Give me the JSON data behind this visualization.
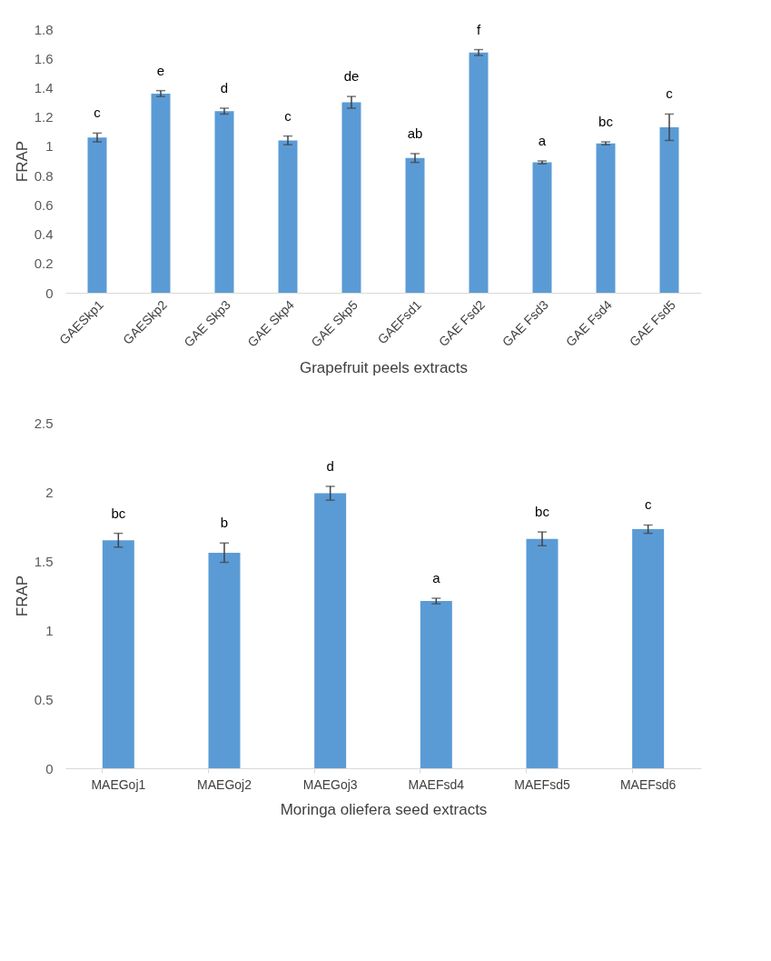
{
  "chart_data": [
    {
      "type": "bar",
      "xlabel": "Grapefruit peels extracts",
      "ylabel": "FRAP",
      "color": "#5b9bd5",
      "categories": [
        "GAESkp1",
        "GAESkp2",
        "GAE Skp3",
        "GAE Skp4",
        "GAE Skp5",
        "GAEFsd1",
        "GAE Fsd2",
        "GAE Fsd3",
        "GAE Fsd4",
        "GAE Fsd5"
      ],
      "values": [
        1.06,
        1.36,
        1.24,
        1.04,
        1.3,
        0.92,
        1.64,
        0.89,
        1.02,
        1.13
      ],
      "errors": [
        0.03,
        0.02,
        0.02,
        0.03,
        0.04,
        0.03,
        0.02,
        0.01,
        0.01,
        0.09
      ],
      "ylim": [
        0,
        1.8
      ],
      "yticks": [
        0,
        0.2,
        0.4,
        0.6,
        0.8,
        1,
        1.2,
        1.4,
        1.6,
        1.8
      ],
      "annotations": [
        "c",
        "e",
        "d",
        "c",
        "de",
        "ab",
        "f",
        "a",
        "bc",
        "c"
      ]
    },
    {
      "type": "bar",
      "xlabel": "Moringa oliefera seed extracts",
      "ylabel": "FRAP",
      "color": "#5b9bd5",
      "categories": [
        "MAEGoj1",
        "MAEGoj2",
        "MAEGoj3",
        "MAEFsd4",
        "MAEFsd5",
        "MAEFsd6"
      ],
      "values": [
        1.65,
        1.56,
        1.99,
        1.21,
        1.66,
        1.73
      ],
      "errors": [
        0.05,
        0.07,
        0.05,
        0.02,
        0.05,
        0.03
      ],
      "ylim": [
        0,
        2.5
      ],
      "yticks": [
        0,
        0.5,
        1,
        1.5,
        2,
        2.5
      ],
      "annotations": [
        "bc",
        "b",
        "d",
        "a",
        "bc",
        "c"
      ]
    }
  ]
}
